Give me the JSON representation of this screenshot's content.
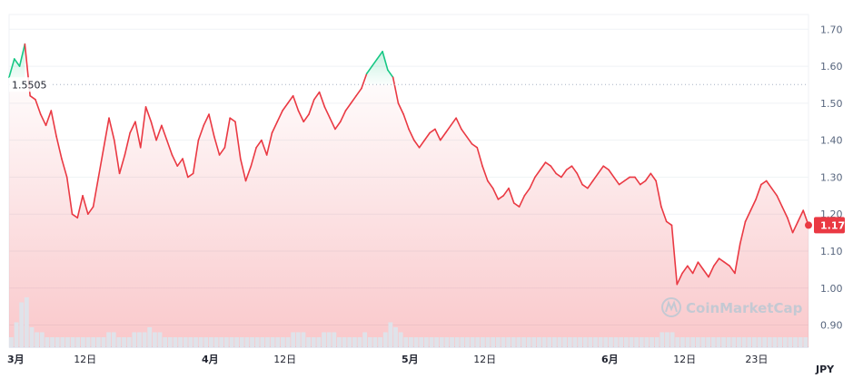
{
  "chart_data": {
    "type": "line",
    "currency": "JPY",
    "y_ticks": [
      0.9,
      1.0,
      1.1,
      1.2,
      1.3,
      1.4,
      1.5,
      1.6,
      1.7
    ],
    "ylim": [
      0.84,
      1.74
    ],
    "x_labels": [
      "3月",
      "12日",
      "4月",
      "12日",
      "5月",
      "12日",
      "6月",
      "12日",
      "23日"
    ],
    "reference_price": 1.5505,
    "reference_label": "1.5505",
    "current_price_label": "1.17",
    "watermark": "CoinMarketCap",
    "colors": {
      "up": "#16c784",
      "down": "#ea3943",
      "grid": "#eff2f5"
    },
    "series": [
      {
        "values": [
          1.57,
          1.62,
          1.6,
          1.66,
          1.52,
          1.51,
          1.47,
          1.44,
          1.48,
          1.41,
          1.35,
          1.3,
          1.2,
          1.19,
          1.25,
          1.2,
          1.22,
          1.3,
          1.38,
          1.46,
          1.4,
          1.31,
          1.36,
          1.42,
          1.45,
          1.38,
          1.49,
          1.45,
          1.4,
          1.44,
          1.4,
          1.36,
          1.33,
          1.35,
          1.3,
          1.31,
          1.4,
          1.44,
          1.47,
          1.41,
          1.36,
          1.38,
          1.46,
          1.45,
          1.35,
          1.29,
          1.33,
          1.38,
          1.4,
          1.36,
          1.42,
          1.45,
          1.48,
          1.5,
          1.52,
          1.48,
          1.45,
          1.47,
          1.51,
          1.53,
          1.49,
          1.46,
          1.43,
          1.45,
          1.48,
          1.5,
          1.52,
          1.54,
          1.58,
          1.6,
          1.62,
          1.64,
          1.59,
          1.57,
          1.5,
          1.47,
          1.43,
          1.4,
          1.38,
          1.4,
          1.42,
          1.43,
          1.4,
          1.42,
          1.44,
          1.46,
          1.43,
          1.41,
          1.39,
          1.38,
          1.33,
          1.29,
          1.27,
          1.24,
          1.25,
          1.27,
          1.23,
          1.22,
          1.25,
          1.27,
          1.3,
          1.32,
          1.34,
          1.33,
          1.31,
          1.3,
          1.32,
          1.33,
          1.31,
          1.28,
          1.27,
          1.29,
          1.31,
          1.33,
          1.32,
          1.3,
          1.28,
          1.29,
          1.3,
          1.3,
          1.28,
          1.29,
          1.31,
          1.29,
          1.22,
          1.18,
          1.17,
          1.01,
          1.04,
          1.06,
          1.04,
          1.07,
          1.05,
          1.03,
          1.06,
          1.08,
          1.07,
          1.06,
          1.04,
          1.12,
          1.18,
          1.21,
          1.24,
          1.28,
          1.29,
          1.27,
          1.25,
          1.22,
          1.19,
          1.15,
          1.18,
          1.21,
          1.17
        ]
      },
      {
        "name": "volume",
        "values": [
          0.2,
          0.5,
          0.9,
          1.0,
          0.4,
          0.3,
          0.3,
          0.2,
          0.2,
          0.2,
          0.2,
          0.2,
          0.2,
          0.2,
          0.2,
          0.2,
          0.2,
          0.2,
          0.2,
          0.3,
          0.3,
          0.2,
          0.2,
          0.2,
          0.3,
          0.3,
          0.3,
          0.4,
          0.3,
          0.3,
          0.2,
          0.2,
          0.2,
          0.2,
          0.2,
          0.2,
          0.2,
          0.2,
          0.2,
          0.2,
          0.2,
          0.2,
          0.2,
          0.2,
          0.2,
          0.2,
          0.2,
          0.2,
          0.2,
          0.2,
          0.2,
          0.2,
          0.2,
          0.2,
          0.2,
          0.3,
          0.3,
          0.3,
          0.2,
          0.2,
          0.2,
          0.3,
          0.3,
          0.3,
          0.2,
          0.2,
          0.2,
          0.2,
          0.2,
          0.3,
          0.2,
          0.2,
          0.2,
          0.3,
          0.5,
          0.4,
          0.3,
          0.2,
          0.2,
          0.2,
          0.2,
          0.2,
          0.2,
          0.2,
          0.2,
          0.2,
          0.2,
          0.2,
          0.2,
          0.2,
          0.2,
          0.2,
          0.2,
          0.2,
          0.2,
          0.2,
          0.2,
          0.2,
          0.2,
          0.2,
          0.2,
          0.2,
          0.2,
          0.2,
          0.2,
          0.2,
          0.2,
          0.2,
          0.2,
          0.2,
          0.2,
          0.2,
          0.2,
          0.2,
          0.2,
          0.2,
          0.2,
          0.2,
          0.2,
          0.2,
          0.2,
          0.2,
          0.2,
          0.2,
          0.2,
          0.2,
          0.2,
          0.3,
          0.3,
          0.3,
          0.2,
          0.2,
          0.2,
          0.2,
          0.2,
          0.2,
          0.2,
          0.2,
          0.2,
          0.2,
          0.2,
          0.2,
          0.2,
          0.2,
          0.2,
          0.2,
          0.2,
          0.2,
          0.2,
          0.2,
          0.2,
          0.2,
          0.2,
          0.2,
          0.2,
          0.2
        ]
      }
    ]
  }
}
